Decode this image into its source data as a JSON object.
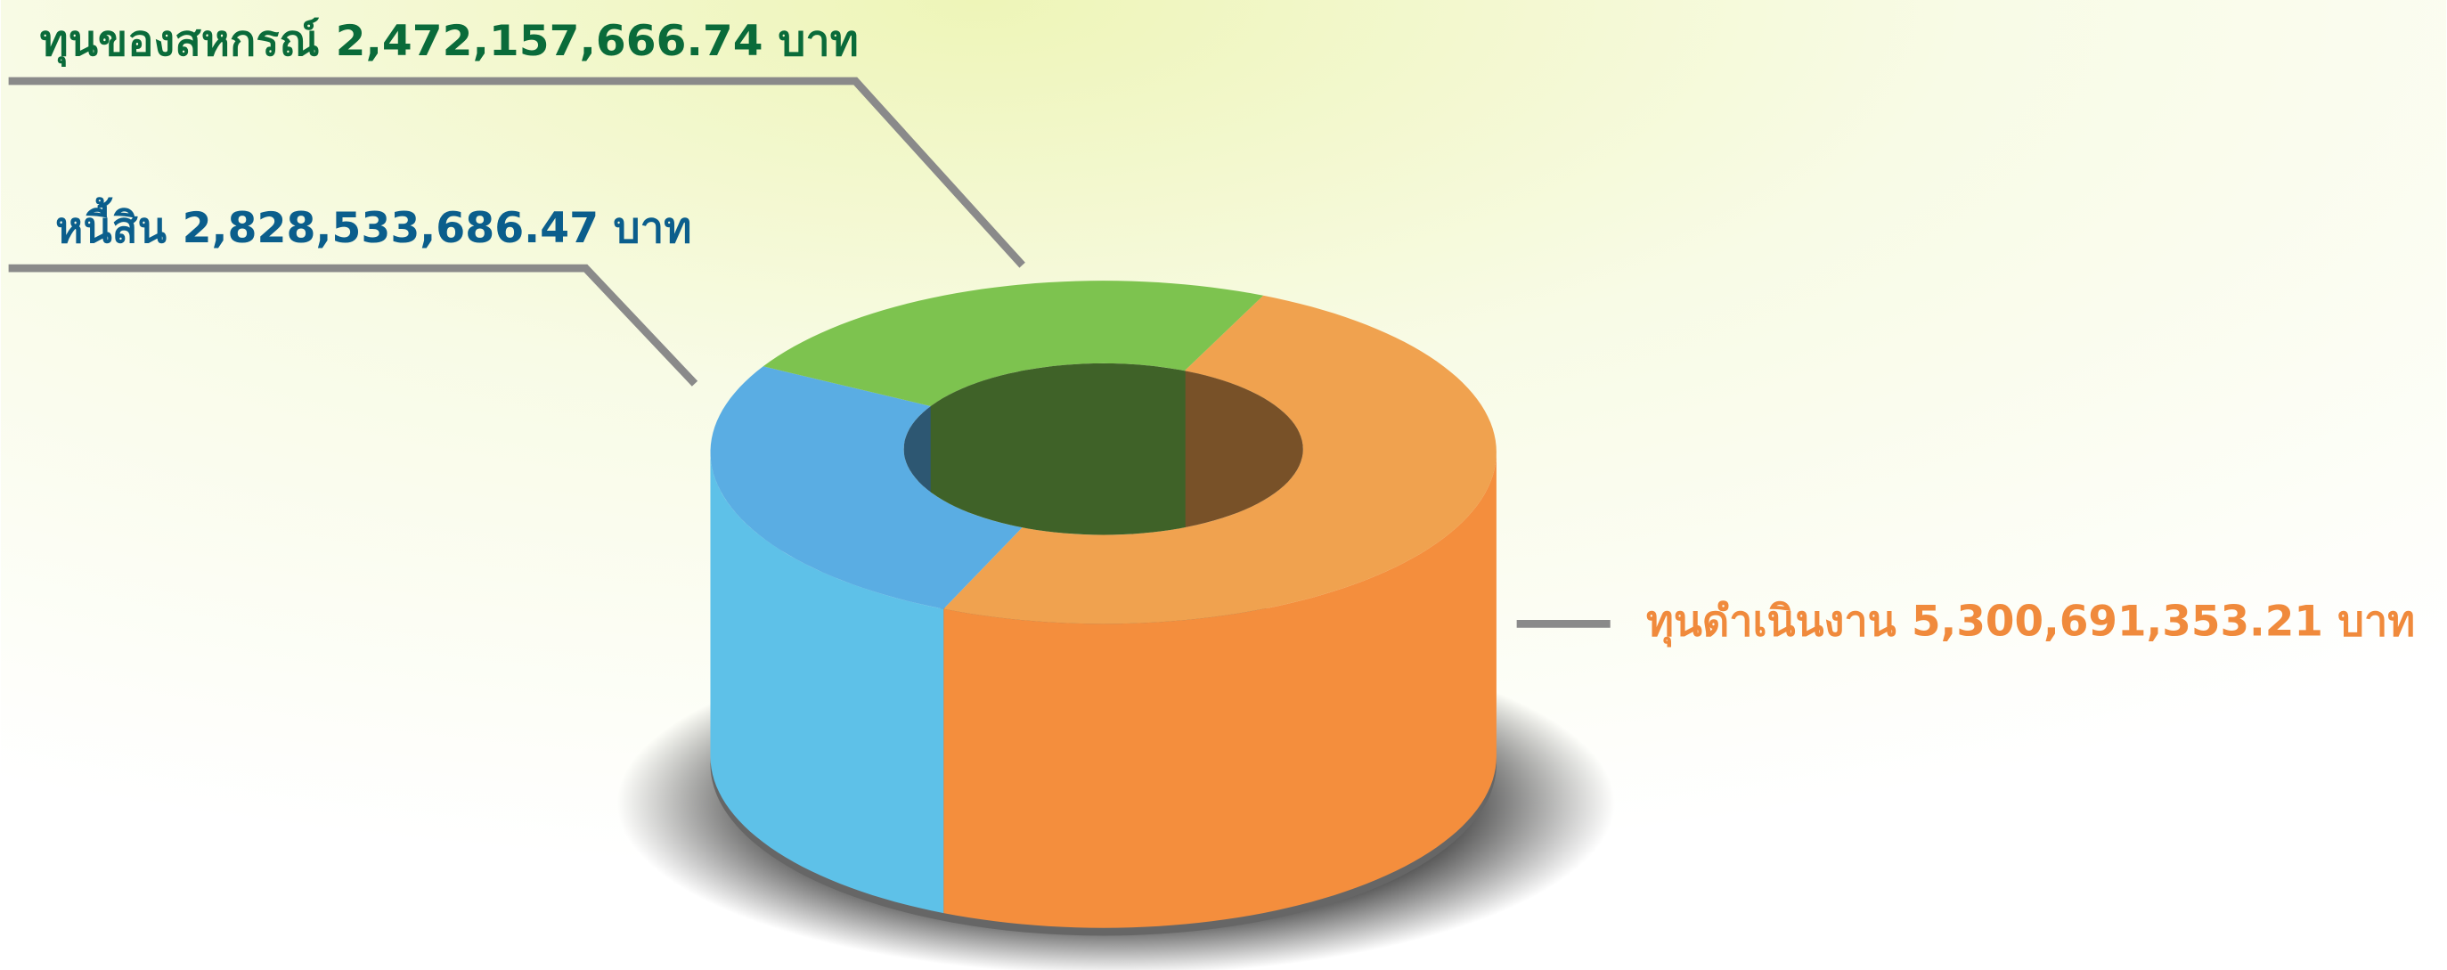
{
  "chart_data": {
    "type": "pie",
    "categories": [
      "ทุนดำเนินงาน",
      "หนี้สิน",
      "ทุนของสหกรณ์"
    ],
    "values": [
      5300691353.21,
      2828533686.47,
      2472157666.74
    ],
    "value_labels": [
      "5,300,691,353.21 บาท",
      "2,828,533,686.47 บาท",
      "2,472,157,666.74 บาท"
    ],
    "colors": [
      "#f0a24f",
      "#5aade3",
      "#7dc34f"
    ]
  }
}
